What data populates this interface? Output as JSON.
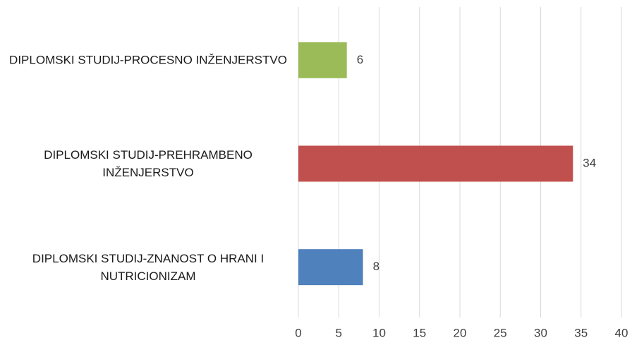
{
  "chart_data": {
    "type": "bar",
    "orientation": "horizontal",
    "categories": [
      "DIPLOMSKI STUDIJ-PROCESNO INŽENJERSTVO",
      "DIPLOMSKI STUDIJ-PREHRAMBENO INŽENJERSTVO",
      "DIPLOMSKI STUDIJ-ZNANOST O HRANI I NUTRICIONIZAM"
    ],
    "values": [
      6,
      34,
      8
    ],
    "colors": [
      "#9bbb59",
      "#c0504d",
      "#4f81bd"
    ],
    "xlim": [
      0,
      40
    ],
    "xticks": [
      0,
      5,
      10,
      15,
      20,
      25,
      30,
      35,
      40
    ],
    "grid": true
  }
}
